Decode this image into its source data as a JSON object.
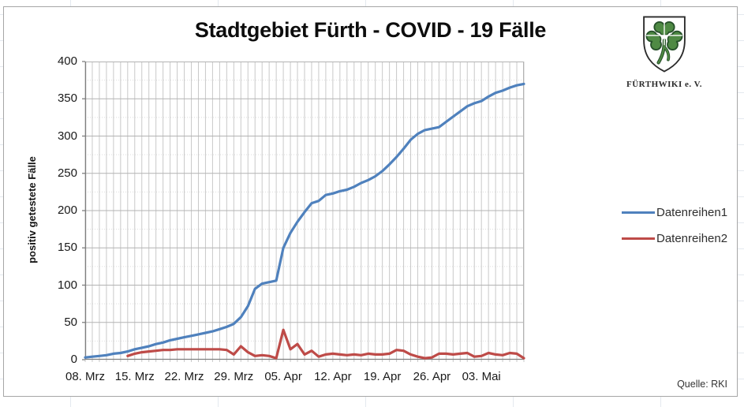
{
  "chart_data": {
    "type": "line",
    "title": "Stadtgebiet Fürth - COVID - 19 Fälle",
    "ylabel": "positiv getestete Fälle",
    "source_note": "Quelle: RKI",
    "ylim": [
      0,
      400
    ],
    "y_major": 50,
    "y_minor": 25,
    "grid": true,
    "legend_position": "right",
    "y_tick_labels": [
      400,
      350,
      300,
      250,
      200,
      150,
      100,
      50,
      0
    ],
    "x_tick_labels": [
      "08. Mrz",
      "15. Mrz",
      "22. Mrz",
      "29. Mrz",
      "05. Apr",
      "12. Apr",
      "19. Apr",
      "26. Apr",
      "03. Mai"
    ],
    "x_tick_days": [
      0,
      7,
      14,
      21,
      28,
      35,
      42,
      49,
      56
    ],
    "x": [
      "08. Mrz",
      "09. Mrz",
      "10. Mrz",
      "11. Mrz",
      "12. Mrz",
      "13. Mrz",
      "14. Mrz",
      "15. Mrz",
      "16. Mrz",
      "17. Mrz",
      "18. Mrz",
      "19. Mrz",
      "20. Mrz",
      "21. Mrz",
      "22. Mrz",
      "23. Mrz",
      "24. Mrz",
      "25. Mrz",
      "26. Mrz",
      "27. Mrz",
      "28. Mrz",
      "29. Mrz",
      "30. Mrz",
      "31. Mrz",
      "01. Apr",
      "02. Apr",
      "03. Apr",
      "04. Apr",
      "05. Apr",
      "06. Apr",
      "07. Apr",
      "08. Apr",
      "09. Apr",
      "10. Apr",
      "11. Apr",
      "12. Apr",
      "13. Apr",
      "14. Apr",
      "15. Apr",
      "16. Apr",
      "17. Apr",
      "18. Apr",
      "19. Apr",
      "20. Apr",
      "21. Apr",
      "22. Apr",
      "23. Apr",
      "24. Apr",
      "25. Apr",
      "26. Apr",
      "27. Apr",
      "28. Apr",
      "29. Apr",
      "30. Apr",
      "01. Mai",
      "02. Mai",
      "03. Mai",
      "04. Mai",
      "05. Mai",
      "06. Mai",
      "07. Mai",
      "08. Mai",
      "09. Mai"
    ],
    "series": [
      {
        "name": "Datenreihen1",
        "color": "#4F81BD",
        "values": [
          3,
          4,
          5,
          6,
          8,
          9,
          11,
          14,
          16,
          18,
          21,
          23,
          26,
          28,
          30,
          32,
          34,
          36,
          38,
          41,
          44,
          48,
          57,
          72,
          95,
          102,
          104,
          106,
          150,
          170,
          185,
          198,
          210,
          213,
          221,
          223,
          226,
          228,
          232,
          237,
          241,
          246,
          253,
          262,
          272,
          283,
          295,
          303,
          308,
          310,
          312,
          319,
          326,
          333,
          340,
          344,
          347,
          353,
          358,
          361,
          365,
          368,
          370
        ]
      },
      {
        "name": "Datenreihen2",
        "color": "#BE4B48",
        "values": [
          null,
          null,
          null,
          null,
          null,
          null,
          5,
          8,
          10,
          11,
          12,
          13,
          13,
          14,
          14,
          14,
          14,
          14,
          14,
          14,
          13,
          7,
          18,
          10,
          5,
          6,
          5,
          2,
          40,
          14,
          21,
          7,
          12,
          4,
          7,
          8,
          7,
          6,
          7,
          6,
          8,
          7,
          7,
          8,
          13,
          12,
          7,
          4,
          2,
          3,
          8,
          8,
          7,
          8,
          9,
          4,
          5,
          9,
          7,
          6,
          9,
          8,
          2
        ]
      }
    ]
  },
  "logo": {
    "text": "FÜRTHWIKI e. V.",
    "clover_green": "#4f8a44",
    "clover_dark": "#27512a"
  }
}
